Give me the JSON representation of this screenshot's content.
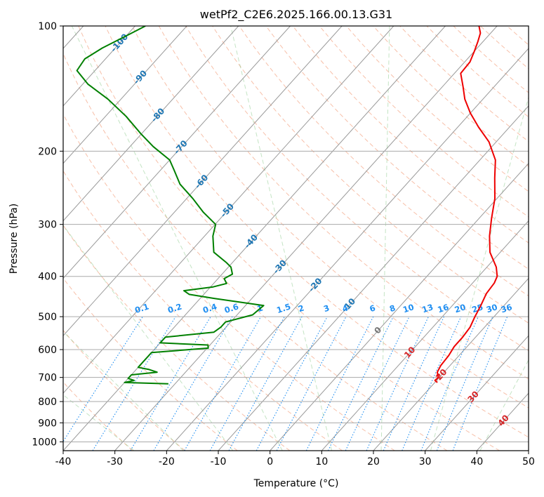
{
  "chart_data": {
    "type": "line",
    "title": "wetPf2_C2E6.2025.166.00.13.G31",
    "xlabel": "Temperature (°C)",
    "ylabel": "Pressure (hPa)",
    "xlim": [
      -40,
      50
    ],
    "ylim": [
      1050,
      100
    ],
    "y_scale": "log",
    "skew": "skew-T",
    "grid": true,
    "x_ticks": [
      -40,
      -30,
      -20,
      -10,
      0,
      10,
      20,
      30,
      40,
      50
    ],
    "y_ticks": [
      100,
      200,
      300,
      400,
      500,
      600,
      700,
      800,
      900,
      1000
    ],
    "isotherm_labels": [
      {
        "text": "-100",
        "p": 110,
        "t": -100
      },
      {
        "text": "-90",
        "p": 133,
        "t": -90
      },
      {
        "text": "-80",
        "p": 164,
        "t": -80
      },
      {
        "text": "-70",
        "p": 196,
        "t": -70
      },
      {
        "text": "-60",
        "p": 237,
        "t": -60
      },
      {
        "text": "-50",
        "p": 278,
        "t": -50
      },
      {
        "text": "-40",
        "p": 330,
        "t": -40
      },
      {
        "text": "-30",
        "p": 380,
        "t": -30
      },
      {
        "text": "-20",
        "p": 420,
        "t": -20
      },
      {
        "text": "-10",
        "p": 470,
        "t": -10
      },
      {
        "text": "0",
        "p": 540,
        "t": 0
      },
      {
        "text": "10",
        "p": 610,
        "t": 10
      },
      {
        "text": "20",
        "p": 690,
        "t": 20
      },
      {
        "text": "30",
        "p": 780,
        "t": 30
      },
      {
        "text": "40",
        "p": 890,
        "t": 40
      }
    ],
    "mixing_ratio_labels": [
      "0.1",
      "0.2",
      "0.4",
      "0.6",
      "1",
      "1.5",
      "2",
      "3",
      "4",
      "6",
      "8",
      "10",
      "13",
      "16",
      "20",
      "25",
      "30",
      "36"
    ],
    "series": [
      {
        "name": "",
        "role": "temperature",
        "color": "#ee0000",
        "points": [
          [
            720,
            20.5
          ],
          [
            712,
            19.7
          ],
          [
            700,
            19.8
          ],
          [
            680,
            18.7
          ],
          [
            655,
            18.2
          ],
          [
            620,
            18.0
          ],
          [
            590,
            17.5
          ],
          [
            560,
            17.5
          ],
          [
            530,
            17.2
          ],
          [
            500,
            16.3
          ],
          [
            470,
            15.5
          ],
          [
            440,
            14.5
          ],
          [
            415,
            14.2
          ],
          [
            400,
            13.6
          ],
          [
            380,
            11.8
          ],
          [
            350,
            8.0
          ],
          [
            320,
            5.1
          ],
          [
            290,
            2.4
          ],
          [
            260,
            -0.4
          ],
          [
            232,
            -4.0
          ],
          [
            210,
            -7.0
          ],
          [
            190,
            -11.4
          ],
          [
            175,
            -16.0
          ],
          [
            162,
            -20.0
          ],
          [
            150,
            -23.5
          ],
          [
            140,
            -26.0
          ],
          [
            130,
            -28.8
          ],
          [
            122,
            -29.0
          ],
          [
            115,
            -30.0
          ],
          [
            109,
            -31.0
          ],
          [
            104,
            -32.0
          ],
          [
            100,
            -33.5
          ]
        ]
      },
      {
        "name": "",
        "role": "dewpoint",
        "color": "#008000",
        "points": [
          [
            725,
            -31.3
          ],
          [
            720,
            -40.0
          ],
          [
            712,
            -38.5
          ],
          [
            704,
            -40.0
          ],
          [
            690,
            -40.0
          ],
          [
            680,
            -35.5
          ],
          [
            670,
            -37.5
          ],
          [
            662,
            -40.0
          ],
          [
            610,
            -40.0
          ],
          [
            595,
            -29.8
          ],
          [
            585,
            -30.4
          ],
          [
            578,
            -40.0
          ],
          [
            560,
            -40.0
          ],
          [
            545,
            -31.5
          ],
          [
            530,
            -31.0
          ],
          [
            515,
            -31.0
          ],
          [
            495,
            -27.0
          ],
          [
            470,
            -26.5
          ],
          [
            452,
            -37.3
          ],
          [
            442,
            -42.8
          ],
          [
            433,
            -44.5
          ],
          [
            424,
            -39.5
          ],
          [
            416,
            -37.5
          ],
          [
            405,
            -38.8
          ],
          [
            395,
            -38.0
          ],
          [
            380,
            -39.5
          ],
          [
            370,
            -41.3
          ],
          [
            350,
            -45.4
          ],
          [
            320,
            -48.4
          ],
          [
            300,
            -49.9
          ],
          [
            280,
            -54.5
          ],
          [
            260,
            -58.8
          ],
          [
            240,
            -63.8
          ],
          [
            222,
            -67.4
          ],
          [
            210,
            -70.0
          ],
          [
            195,
            -75.5
          ],
          [
            182,
            -80.0
          ],
          [
            165,
            -86.0
          ],
          [
            150,
            -92.5
          ],
          [
            138,
            -99.0
          ],
          [
            128,
            -103.5
          ],
          [
            120,
            -104.0
          ],
          [
            113,
            -102.5
          ],
          [
            105,
            -99.8
          ],
          [
            100,
            -98.0
          ]
        ]
      }
    ]
  }
}
